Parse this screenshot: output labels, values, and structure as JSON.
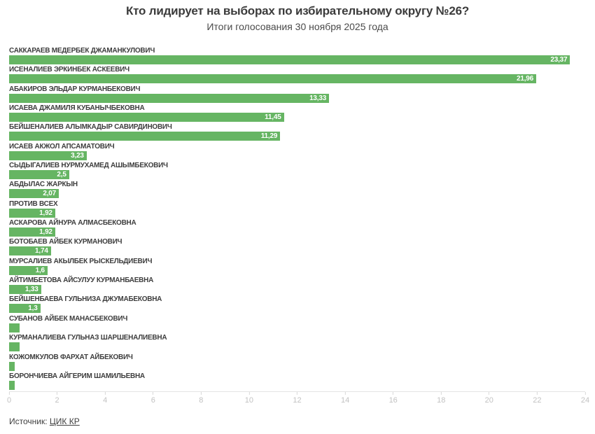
{
  "header": {
    "title": "Кто лидирует на выборах по избирательному округу №26?",
    "subtitle": "Итоги голосования 30 ноября 2025 года"
  },
  "source": {
    "prefix": "Источник: ",
    "link_label": "ЦИК КР"
  },
  "colors": {
    "bar": "#66b563",
    "bar_value_text": "#ffffff",
    "candidate_label": "#3d3d3d",
    "axis_tick_label": "#c2c2c2",
    "title_text": "#3b3b3b"
  },
  "chart_data": {
    "type": "bar",
    "orientation": "horizontal",
    "title": "Кто лидирует на выборах по избирательному округу №26?",
    "subtitle": "Итоги голосования 30 ноября 2025 года",
    "xlabel": "",
    "ylabel": "",
    "xlim": [
      0,
      24
    ],
    "x_ticks": [
      0,
      2,
      4,
      6,
      8,
      10,
      12,
      14,
      16,
      18,
      20,
      22,
      24
    ],
    "grid": false,
    "legend": false,
    "categories": [
      "САККАРАЕВ МЕДЕРБЕК ДЖАМАНКУЛОВИЧ",
      "ИСЕНАЛИЕВ ЭРКИНБЕК АСКЕЕВИЧ",
      "АБАКИРОВ ЭЛЬДАР КУРМАНБЕКОВИЧ",
      "ИСАЕВА ДЖАМИЛЯ КУБАНЫЧБЕКОВНА",
      "БЕЙШЕНАЛИЕВ АЛЫМКАДЫР САВИРДИНОВИЧ",
      "ИСАЕВ АКЖОЛ АПСАМАТОВИЧ",
      "СЫДЫГАЛИЕВ НУРМУХАМЕД АШЫМБЕКОВИЧ",
      "АБДЫЛАС ЖАРКЫН",
      "ПРОТИВ ВСЕХ",
      "АСКАРОВА АЙНУРА АЛМАСБЕКОВНА",
      "БОТОБАЕВ АЙБЕК КУРМАНОВИЧ",
      "МУРСАЛИЕВ АКЫЛБЕК РЫСКЕЛЬДИЕВИЧ",
      "АЙТИМБЕТОВА АЙСУЛУУ КУРМАНБАЕВНА",
      "БЕЙШЕНБАЕВА ГУЛЬНИЗА ДЖУМАБЕКОВНА",
      "СУБАНОВ АЙБЕК МАНАСБЕКОВИЧ",
      "КУРМАНАЛИЕВА ГУЛЬНАЗ ШАРШЕНАЛИЕВНА",
      "КОЖОМКУЛОВ ФАРХАТ АЙБЕКОВИЧ",
      "БОРОНЧИЕВА АЙГЕРИМ ШАМИЛЬЕВНА"
    ],
    "values": [
      23.37,
      21.96,
      13.33,
      11.45,
      11.29,
      3.23,
      2.5,
      2.07,
      1.92,
      1.92,
      1.74,
      1.6,
      1.33,
      1.3,
      0.44,
      0.44,
      0.23,
      0.22
    ],
    "value_labels": [
      "23,37",
      "21,96",
      "13,33",
      "11,45",
      "11,29",
      "3,23",
      "2,5",
      "2,07",
      "1,92",
      "1,92",
      "1,74",
      "1,6",
      "1,33",
      "1,3",
      "",
      "",
      "",
      ""
    ]
  }
}
